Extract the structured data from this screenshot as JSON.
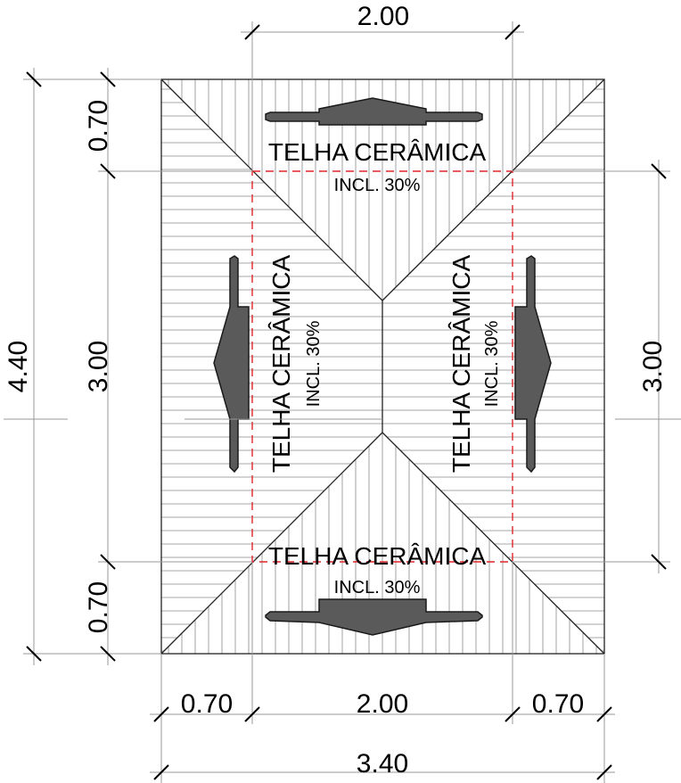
{
  "roof": {
    "material": "TELHA CERÂMICA",
    "slope": "INCL. 30%"
  },
  "dimensions": {
    "top_width": "2.00",
    "left_top": "0.70",
    "left_middle": "3.00",
    "left_total": "4.40",
    "left_bottom": "0.70",
    "right_middle": "3.00",
    "bottom_left": "0.70",
    "bottom_middle": "2.00",
    "bottom_right": "0.70",
    "bottom_total": "3.40"
  }
}
